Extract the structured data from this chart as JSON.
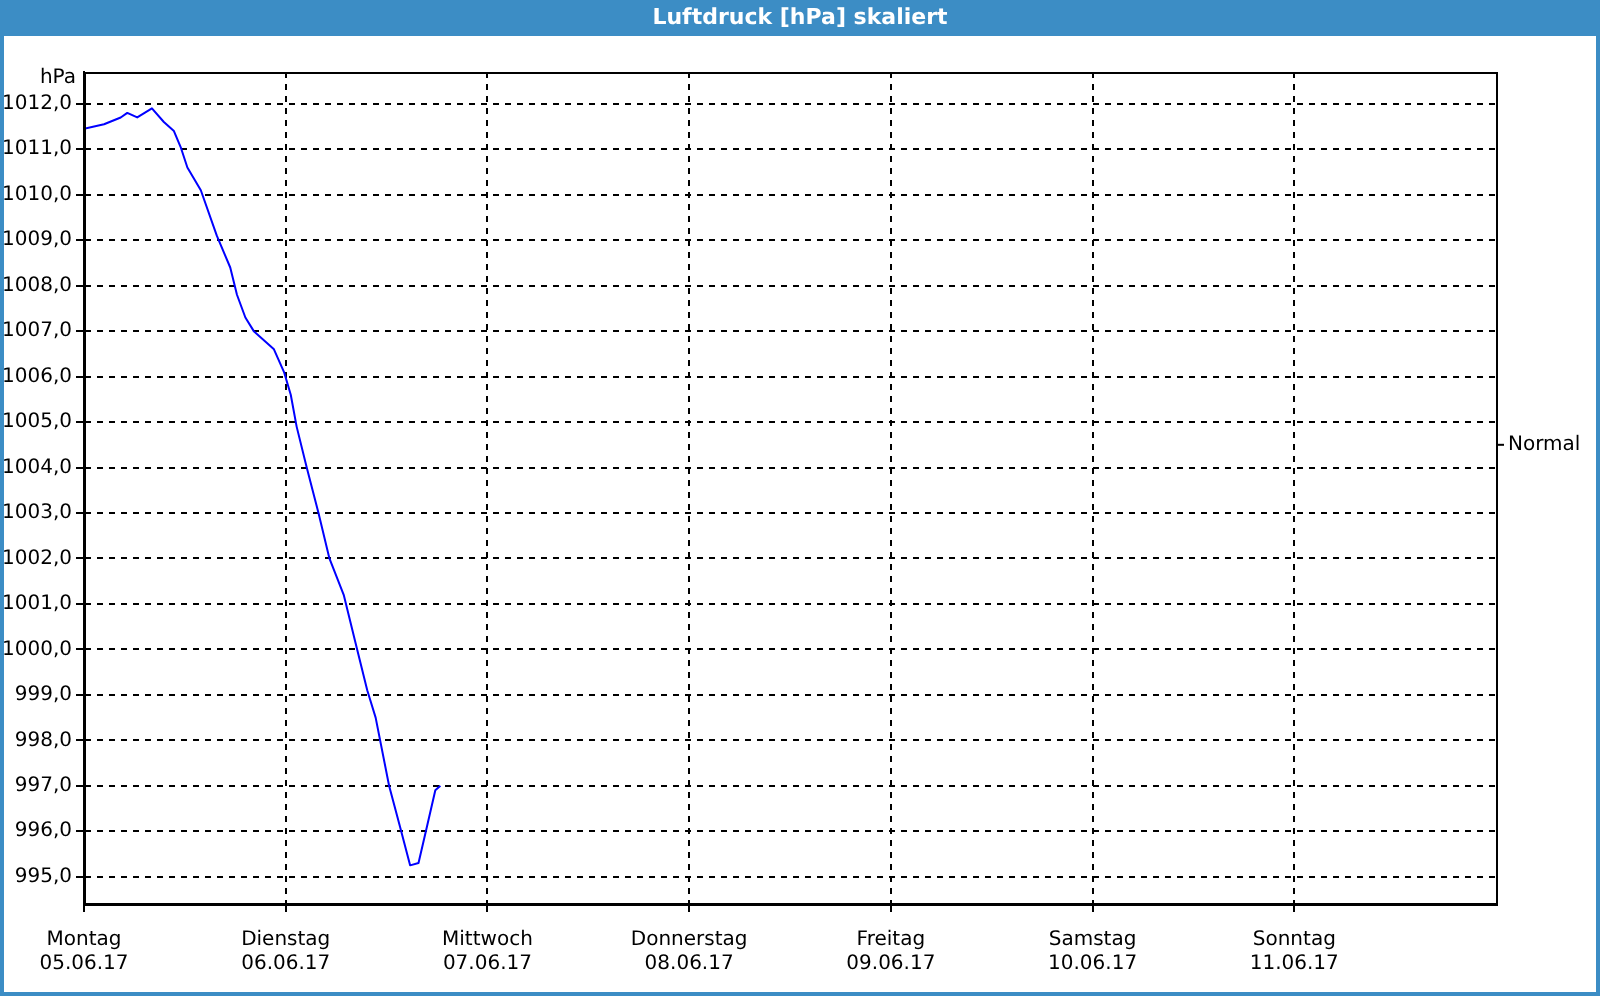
{
  "chart_data": {
    "type": "line",
    "title": "Luftdruck [hPa] skaliert",
    "ylabel": "hPa",
    "x": [
      "--06-05T00:00",
      "--06-05T02:23",
      "--06-05T04:22",
      "--06-05T05:09",
      "--06-05T06:20",
      "--06-05T08:05",
      "--06-05T09:30",
      "--06-05T10:42",
      "--06-05T11:30",
      "--06-05T12:18",
      "--06-05T13:54",
      "--06-05T15:48",
      "--06-05T17:24",
      "--06-05T18:12",
      "--06-05T19:12",
      "--06-05T20:12",
      "--06-05T22:36",
      "--06-05T23:48",
      "--06-06T00:36",
      "--06-06T01:18",
      "--06-06T02:30",
      "--06-06T03:54",
      "--06-06T05:12",
      "--06-06T06:54",
      "--06-06T08:30",
      "--06-06T09:42",
      "--06-06T10:42",
      "--06-06T12:18",
      "--06-06T13:36",
      "--06-06T14:48",
      "--06-06T15:48",
      "--06-06T16:48",
      "--06-06T17:48",
      "--06-06T18:24"
    ],
    "series": [
      {
        "color": "#0000ff",
        "values": [
          1011.45,
          1011.55,
          1011.7,
          1011.8,
          1011.7,
          1011.9,
          1011.6,
          1011.4,
          1011.05,
          1010.6,
          1010.1,
          1009.1,
          1008.4,
          1007.8,
          1007.3,
          1007.0,
          1006.6,
          1006.1,
          1005.6,
          1004.9,
          1004.0,
          1003.0,
          1002.0,
          1001.2,
          1000.0,
          999.1,
          998.5,
          997.0,
          996.1,
          995.25,
          995.3,
          996.1,
          996.9,
          997.0
        ]
      }
    ],
    "xlim": [
      "--06-05",
      "--06-12"
    ],
    "xticks": [
      {
        "value": "--06-05",
        "label": "Montag\n05.06.17"
      },
      {
        "value": "--06-06",
        "label": "Dienstag\n06.06.17"
      },
      {
        "value": "--06-07",
        "label": "Mittwoch\n07.06.17"
      },
      {
        "value": "--06-08",
        "label": "Donnerstag\n08.06.17"
      },
      {
        "value": "--06-09",
        "label": "Freitag\n09.06.17"
      },
      {
        "value": "--06-10",
        "label": "Samstag\n10.06.17"
      },
      {
        "value": "--06-11",
        "label": "Sonntag\n11.06.17"
      }
    ],
    "ylim": [
      994.4,
      1012.7
    ],
    "yticks": [
      {
        "value": 995,
        "label": "995,0"
      },
      {
        "value": 996,
        "label": "996,0"
      },
      {
        "value": 997,
        "label": "997,0"
      },
      {
        "value": 998,
        "label": "998,0"
      },
      {
        "value": 999,
        "label": "999,0"
      },
      {
        "value": 1000,
        "label": "1000,0"
      },
      {
        "value": 1001,
        "label": "1001,0"
      },
      {
        "value": 1002,
        "label": "1002,0"
      },
      {
        "value": 1003,
        "label": "1003,0"
      },
      {
        "value": 1004,
        "label": "1004,0"
      },
      {
        "value": 1005,
        "label": "1005,0"
      },
      {
        "value": 1006,
        "label": "1006,0"
      },
      {
        "value": 1007,
        "label": "1007,0"
      },
      {
        "value": 1008,
        "label": "1008,0"
      },
      {
        "value": 1009,
        "label": "1009,0"
      },
      {
        "value": 1010,
        "label": "1010,0"
      },
      {
        "value": 1011,
        "label": "1011,0"
      },
      {
        "value": 1012,
        "label": "1012,0"
      }
    ],
    "ref_lines": [
      {
        "axis": "y",
        "value": 1004.5,
        "label": "Normal"
      }
    ],
    "grid": true,
    "legend": false,
    "marker": "none",
    "line_style": "solid"
  }
}
